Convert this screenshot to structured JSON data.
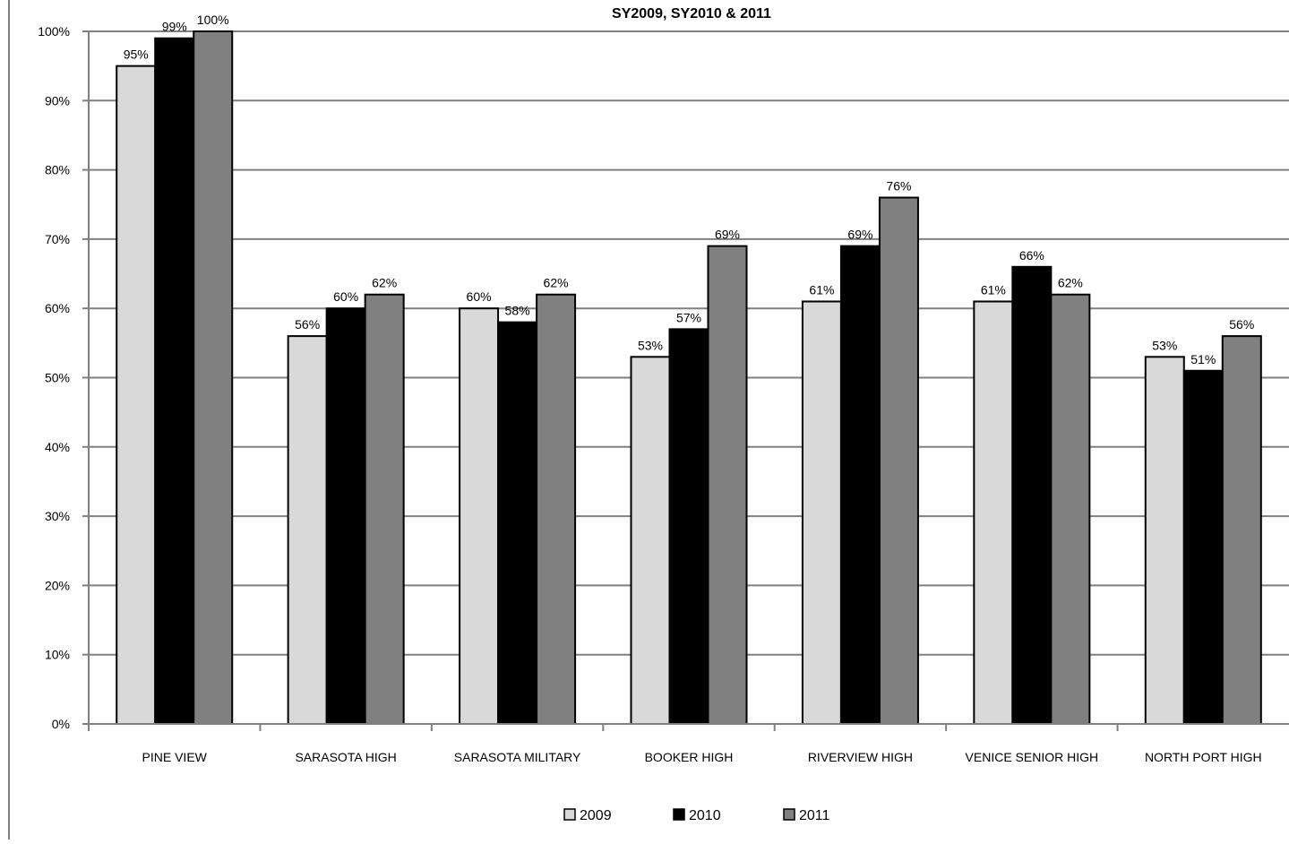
{
  "chart_data": {
    "type": "bar",
    "title": "SY2009, SY2010 & 2011",
    "categories": [
      "PINE VIEW",
      "SARASOTA HIGH",
      "SARASOTA MILITARY",
      "BOOKER HIGH",
      "RIVERVIEW HIGH",
      "VENICE SENIOR HIGH",
      "NORTH PORT HIGH"
    ],
    "series": [
      {
        "name": "2009",
        "values": [
          95,
          56,
          60,
          53,
          61,
          61,
          53
        ],
        "labels": [
          "95%",
          "56%",
          "60%",
          "53%",
          "61%",
          "61%",
          "53%"
        ],
        "color": "#d9d9d9"
      },
      {
        "name": "2010",
        "values": [
          99,
          60,
          58,
          57,
          69,
          66,
          51
        ],
        "labels": [
          "99%",
          "60%",
          "58%",
          "57%",
          "69%",
          "66%",
          "51%"
        ],
        "color": "#000000"
      },
      {
        "name": "2011",
        "values": [
          100,
          62,
          62,
          69,
          76,
          62,
          56
        ],
        "labels": [
          "100%",
          "62%",
          "62%",
          "69%",
          "76%",
          "62%",
          "56%"
        ],
        "color": "#808080"
      }
    ],
    "yticks": [
      "0%",
      "10%",
      "20%",
      "30%",
      "40%",
      "50%",
      "60%",
      "70%",
      "80%",
      "90%",
      "100%"
    ],
    "ylim": [
      0,
      100
    ],
    "grid": true,
    "legend": "bottom"
  }
}
